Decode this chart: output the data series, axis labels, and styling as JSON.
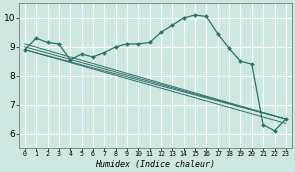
{
  "xlabel": "Humidex (Indice chaleur)",
  "bg_color": "#cce8e0",
  "grid_color": "#ffffff",
  "line_color": "#2d7068",
  "xlim": [
    -0.5,
    23.5
  ],
  "ylim": [
    5.5,
    10.5
  ],
  "xticks": [
    0,
    1,
    2,
    3,
    4,
    5,
    6,
    7,
    8,
    9,
    10,
    11,
    12,
    13,
    14,
    15,
    16,
    17,
    18,
    19,
    20,
    21,
    22,
    23
  ],
  "yticks": [
    6,
    7,
    8,
    9,
    10
  ],
  "line_main_x": [
    0,
    1,
    2,
    3,
    4,
    5,
    6,
    7,
    8,
    9,
    10,
    11,
    12,
    13,
    14,
    15,
    16,
    17,
    18,
    19,
    20,
    21,
    22,
    23
  ],
  "line_main_y": [
    8.9,
    9.3,
    9.15,
    9.1,
    8.55,
    8.75,
    8.65,
    8.8,
    9.0,
    9.1,
    9.1,
    9.15,
    9.5,
    9.75,
    10.0,
    10.1,
    10.05,
    9.45,
    8.95,
    8.5,
    8.4,
    6.3,
    6.1,
    6.5
  ],
  "diag_lines": [
    {
      "x": [
        0,
        23
      ],
      "y": [
        8.9,
        6.5
      ]
    },
    {
      "x": [
        0,
        23
      ],
      "y": [
        8.9,
        6.35
      ]
    },
    {
      "x": [
        0,
        23
      ],
      "y": [
        9.0,
        6.5
      ]
    },
    {
      "x": [
        0,
        23
      ],
      "y": [
        9.1,
        6.5
      ]
    }
  ]
}
